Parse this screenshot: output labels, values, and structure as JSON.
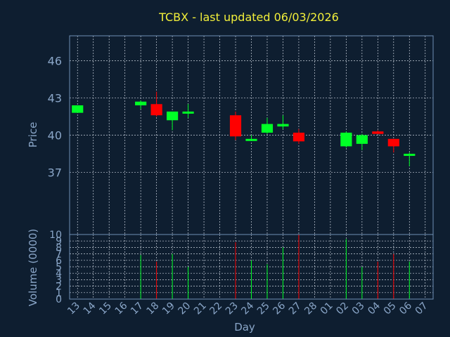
{
  "chart_data": {
    "type": "candlestick",
    "title": "TCBX - last updated 06/03/2026",
    "xlabel": "Day",
    "price_panel": {
      "ylabel": "Price",
      "ylim": [
        32,
        48
      ],
      "yticks": [
        37,
        40,
        43,
        46
      ]
    },
    "volume_panel": {
      "ylabel": "Volume (0000)",
      "ylim": [
        0,
        10
      ],
      "yticks": [
        0,
        1,
        2,
        3,
        4,
        5,
        6,
        7,
        8,
        9,
        10
      ]
    },
    "grid": true,
    "colors": {
      "up": "#00ff26",
      "down": "#ff0000",
      "title": "#f2ef3a",
      "axis": "#8aa6c8",
      "background": "#0e1e30"
    },
    "x_ticks": [
      "13",
      "14",
      "15",
      "16",
      "17",
      "18",
      "19",
      "20",
      "21",
      "22",
      "23",
      "24",
      "25",
      "26",
      "27",
      "28",
      "01",
      "02",
      "03",
      "04",
      "05",
      "06",
      "07"
    ],
    "candles": [
      {
        "day": "13",
        "open": 41.8,
        "high": 42.4,
        "low": 41.8,
        "close": 42.4,
        "volume": null
      },
      {
        "day": "17",
        "open": 42.4,
        "high": 42.8,
        "low": 42.1,
        "close": 42.7,
        "volume": 6.8
      },
      {
        "day": "18",
        "open": 42.5,
        "high": 43.5,
        "low": 41.5,
        "close": 41.6,
        "volume": 5.8
      },
      {
        "day": "19",
        "open": 41.2,
        "high": 41.9,
        "low": 40.4,
        "close": 41.9,
        "volume": 7.0
      },
      {
        "day": "20",
        "open": 41.9,
        "high": 42.5,
        "low": 41.4,
        "close": 41.9,
        "volume": 5.0
      },
      {
        "day": "23",
        "open": 41.6,
        "high": 41.9,
        "low": 39.6,
        "close": 39.9,
        "volume": 8.8
      },
      {
        "day": "24",
        "open": 39.6,
        "high": 40.0,
        "low": 39.6,
        "close": 39.7,
        "volume": 6.0
      },
      {
        "day": "25",
        "open": 40.2,
        "high": 41.4,
        "low": 40.1,
        "close": 40.9,
        "volume": 5.4
      },
      {
        "day": "26",
        "open": 40.7,
        "high": 41.6,
        "low": 40.5,
        "close": 40.9,
        "volume": 8.0
      },
      {
        "day": "27",
        "open": 40.2,
        "high": 40.5,
        "low": 39.3,
        "close": 39.5,
        "volume": 10.0
      },
      {
        "day": "02",
        "open": 39.1,
        "high": 40.3,
        "low": 39.0,
        "close": 40.2,
        "volume": 9.3
      },
      {
        "day": "03",
        "open": 39.3,
        "high": 40.1,
        "low": 38.8,
        "close": 40.0,
        "volume": 5.0
      },
      {
        "day": "04",
        "open": 40.3,
        "high": 40.4,
        "low": 40.1,
        "close": 40.1,
        "volume": 5.8
      },
      {
        "day": "05",
        "open": 39.7,
        "high": 39.7,
        "low": 38.6,
        "close": 39.1,
        "volume": 7.0
      },
      {
        "day": "06",
        "open": 38.4,
        "high": 38.6,
        "low": 37.5,
        "close": 38.5,
        "volume": 5.8
      }
    ]
  }
}
